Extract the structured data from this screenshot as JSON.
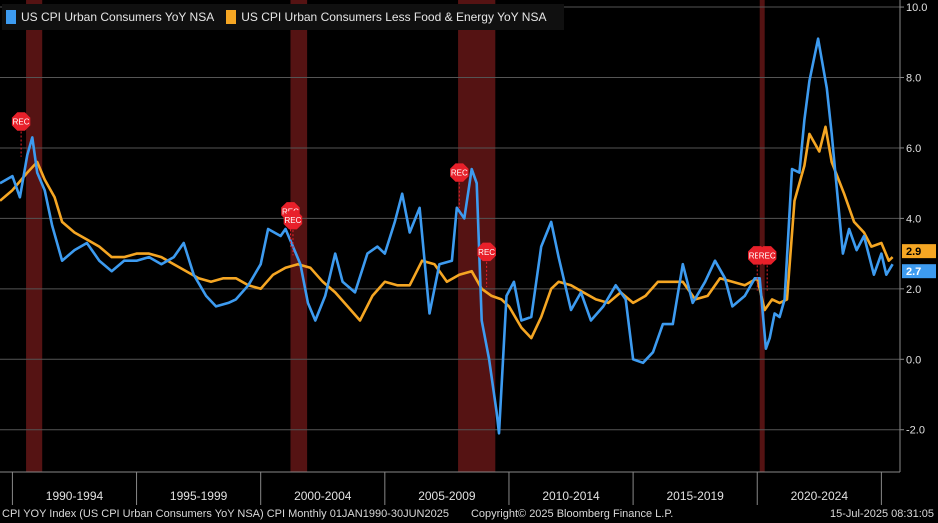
{
  "legend": {
    "series1": "US CPI Urban Consumers YoY NSA",
    "series2": "US CPI Urban Consumers Less Food & Energy YoY NSA"
  },
  "colors": {
    "series1": "#3d9bf0",
    "series2": "#f5a623",
    "recession": "#5a1414",
    "rec_marker": "#e8202a",
    "grid": "#555555"
  },
  "footer": {
    "source": "CPI YOY Index (US CPI Urban Consumers YoY NSA) CPI  Monthly 01JAN1990-30JUN2025",
    "copyright": "Copyright© 2025 Bloomberg Finance L.P.",
    "timestamp": "15-Jul-2025 08:31:05"
  },
  "chart_data": {
    "type": "line",
    "title": "",
    "xlabel": "",
    "ylabel": "",
    "xlim": [
      1989.5,
      2025.75
    ],
    "ylim": [
      -3.2,
      10.2
    ],
    "y_ticks": [
      -2.0,
      0.0,
      2.0,
      4.0,
      6.0,
      8.0,
      10.0
    ],
    "y_tick_labels": [
      "-2.0",
      "0.0",
      "2.0",
      "4.0",
      "6.0",
      "8.0",
      "10.0"
    ],
    "x_tick_labels": [
      "1990-1994",
      "1995-1999",
      "2000-2004",
      "2005-2009",
      "2010-2014",
      "2015-2019",
      "2020-2024"
    ],
    "x_tick_ranges": [
      [
        1990,
        1995
      ],
      [
        1995,
        2000
      ],
      [
        2000,
        2005
      ],
      [
        2005,
        2010
      ],
      [
        2010,
        2015
      ],
      [
        2015,
        2020
      ],
      [
        2020,
        2025
      ]
    ],
    "recessions": [
      [
        1990.55,
        1991.2
      ],
      [
        2001.2,
        2001.87
      ],
      [
        2007.95,
        2009.45
      ],
      [
        2020.1,
        2020.3
      ]
    ],
    "rec_label": "REC",
    "rec_markers": [
      {
        "x": 1990.35,
        "y": 6.75
      },
      {
        "x": 2001.2,
        "y": 4.2
      },
      {
        "x": 2001.3,
        "y": 3.95
      },
      {
        "x": 2008.0,
        "y": 5.3
      },
      {
        "x": 2009.1,
        "y": 3.05
      },
      {
        "x": 2020.0,
        "y": 2.95
      },
      {
        "x": 2020.4,
        "y": 2.95
      }
    ],
    "series": [
      {
        "name": "US CPI Urban Consumers YoY NSA",
        "last_label": "2.7",
        "points": [
          [
            1989.5,
            5.0
          ],
          [
            1990.0,
            5.2
          ],
          [
            1990.3,
            4.6
          ],
          [
            1990.6,
            5.8
          ],
          [
            1990.8,
            6.3
          ],
          [
            1991.0,
            5.3
          ],
          [
            1991.3,
            4.8
          ],
          [
            1991.6,
            3.8
          ],
          [
            1992.0,
            2.8
          ],
          [
            1992.5,
            3.1
          ],
          [
            1993.0,
            3.3
          ],
          [
            1993.5,
            2.8
          ],
          [
            1994.0,
            2.5
          ],
          [
            1994.5,
            2.8
          ],
          [
            1995.0,
            2.8
          ],
          [
            1995.5,
            2.9
          ],
          [
            1996.0,
            2.7
          ],
          [
            1996.5,
            2.9
          ],
          [
            1996.9,
            3.3
          ],
          [
            1997.3,
            2.4
          ],
          [
            1997.8,
            1.8
          ],
          [
            1998.2,
            1.5
          ],
          [
            1998.7,
            1.6
          ],
          [
            1999.0,
            1.7
          ],
          [
            1999.5,
            2.1
          ],
          [
            2000.0,
            2.7
          ],
          [
            2000.3,
            3.7
          ],
          [
            2000.8,
            3.5
          ],
          [
            2001.0,
            3.7
          ],
          [
            2001.3,
            3.2
          ],
          [
            2001.6,
            2.7
          ],
          [
            2001.9,
            1.6
          ],
          [
            2002.2,
            1.1
          ],
          [
            2002.6,
            1.8
          ],
          [
            2003.0,
            3.0
          ],
          [
            2003.3,
            2.2
          ],
          [
            2003.8,
            1.9
          ],
          [
            2004.3,
            3.0
          ],
          [
            2004.7,
            3.2
          ],
          [
            2005.0,
            3.0
          ],
          [
            2005.4,
            3.9
          ],
          [
            2005.7,
            4.7
          ],
          [
            2006.0,
            3.6
          ],
          [
            2006.4,
            4.3
          ],
          [
            2006.8,
            1.3
          ],
          [
            2007.2,
            2.7
          ],
          [
            2007.7,
            2.8
          ],
          [
            2007.9,
            4.3
          ],
          [
            2008.2,
            4.0
          ],
          [
            2008.5,
            5.4
          ],
          [
            2008.7,
            5.0
          ],
          [
            2008.9,
            1.1
          ],
          [
            2009.2,
            0.0
          ],
          [
            2009.5,
            -1.5
          ],
          [
            2009.6,
            -2.1
          ],
          [
            2009.9,
            1.8
          ],
          [
            2010.2,
            2.2
          ],
          [
            2010.5,
            1.1
          ],
          [
            2010.9,
            1.2
          ],
          [
            2011.3,
            3.2
          ],
          [
            2011.7,
            3.9
          ],
          [
            2012.0,
            2.9
          ],
          [
            2012.5,
            1.4
          ],
          [
            2012.9,
            1.9
          ],
          [
            2013.3,
            1.1
          ],
          [
            2013.8,
            1.5
          ],
          [
            2014.3,
            2.1
          ],
          [
            2014.7,
            1.7
          ],
          [
            2015.0,
            0.0
          ],
          [
            2015.4,
            -0.1
          ],
          [
            2015.8,
            0.2
          ],
          [
            2016.2,
            1.0
          ],
          [
            2016.6,
            1.0
          ],
          [
            2017.0,
            2.7
          ],
          [
            2017.4,
            1.6
          ],
          [
            2017.9,
            2.2
          ],
          [
            2018.3,
            2.8
          ],
          [
            2018.7,
            2.3
          ],
          [
            2019.0,
            1.5
          ],
          [
            2019.5,
            1.8
          ],
          [
            2019.9,
            2.3
          ],
          [
            2020.1,
            2.3
          ],
          [
            2020.35,
            0.3
          ],
          [
            2020.5,
            0.6
          ],
          [
            2020.7,
            1.3
          ],
          [
            2020.9,
            1.2
          ],
          [
            2021.1,
            1.7
          ],
          [
            2021.4,
            5.4
          ],
          [
            2021.7,
            5.3
          ],
          [
            2021.9,
            6.8
          ],
          [
            2022.1,
            7.9
          ],
          [
            2022.45,
            9.1
          ],
          [
            2022.8,
            7.7
          ],
          [
            2023.0,
            6.4
          ],
          [
            2023.45,
            3.0
          ],
          [
            2023.7,
            3.7
          ],
          [
            2024.0,
            3.1
          ],
          [
            2024.3,
            3.5
          ],
          [
            2024.7,
            2.4
          ],
          [
            2025.0,
            3.0
          ],
          [
            2025.2,
            2.4
          ],
          [
            2025.45,
            2.7
          ]
        ]
      },
      {
        "name": "US CPI Urban Consumers Less Food & Energy YoY NSA",
        "last_label": "2.9",
        "points": [
          [
            1989.5,
            4.5
          ],
          [
            1990.0,
            4.8
          ],
          [
            1990.6,
            5.3
          ],
          [
            1991.0,
            5.6
          ],
          [
            1991.3,
            5.1
          ],
          [
            1991.7,
            4.6
          ],
          [
            1992.0,
            3.9
          ],
          [
            1992.5,
            3.6
          ],
          [
            1993.0,
            3.4
          ],
          [
            1993.5,
            3.2
          ],
          [
            1994.0,
            2.9
          ],
          [
            1994.5,
            2.9
          ],
          [
            1995.0,
            3.0
          ],
          [
            1995.5,
            3.0
          ],
          [
            1996.0,
            2.9
          ],
          [
            1996.5,
            2.7
          ],
          [
            1997.0,
            2.5
          ],
          [
            1997.5,
            2.3
          ],
          [
            1998.0,
            2.2
          ],
          [
            1998.5,
            2.3
          ],
          [
            1999.0,
            2.3
          ],
          [
            1999.5,
            2.1
          ],
          [
            2000.0,
            2.0
          ],
          [
            2000.5,
            2.4
          ],
          [
            2001.0,
            2.6
          ],
          [
            2001.5,
            2.7
          ],
          [
            2002.0,
            2.6
          ],
          [
            2002.5,
            2.2
          ],
          [
            2003.0,
            1.9
          ],
          [
            2003.5,
            1.5
          ],
          [
            2004.0,
            1.1
          ],
          [
            2004.5,
            1.8
          ],
          [
            2005.0,
            2.2
          ],
          [
            2005.5,
            2.1
          ],
          [
            2006.0,
            2.1
          ],
          [
            2006.5,
            2.8
          ],
          [
            2007.0,
            2.7
          ],
          [
            2007.5,
            2.2
          ],
          [
            2008.0,
            2.4
          ],
          [
            2008.5,
            2.5
          ],
          [
            2008.9,
            2.0
          ],
          [
            2009.3,
            1.8
          ],
          [
            2009.7,
            1.7
          ],
          [
            2010.0,
            1.5
          ],
          [
            2010.5,
            0.9
          ],
          [
            2010.9,
            0.6
          ],
          [
            2011.3,
            1.2
          ],
          [
            2011.7,
            2.0
          ],
          [
            2012.0,
            2.2
          ],
          [
            2012.5,
            2.1
          ],
          [
            2013.0,
            1.9
          ],
          [
            2013.5,
            1.7
          ],
          [
            2014.0,
            1.6
          ],
          [
            2014.5,
            1.9
          ],
          [
            2015.0,
            1.6
          ],
          [
            2015.5,
            1.8
          ],
          [
            2016.0,
            2.2
          ],
          [
            2016.5,
            2.2
          ],
          [
            2017.0,
            2.2
          ],
          [
            2017.5,
            1.7
          ],
          [
            2018.0,
            1.8
          ],
          [
            2018.5,
            2.3
          ],
          [
            2019.0,
            2.2
          ],
          [
            2019.5,
            2.1
          ],
          [
            2020.0,
            2.3
          ],
          [
            2020.3,
            1.4
          ],
          [
            2020.6,
            1.7
          ],
          [
            2020.9,
            1.6
          ],
          [
            2021.2,
            1.7
          ],
          [
            2021.5,
            4.5
          ],
          [
            2021.9,
            5.5
          ],
          [
            2022.1,
            6.4
          ],
          [
            2022.5,
            5.9
          ],
          [
            2022.75,
            6.6
          ],
          [
            2023.0,
            5.6
          ],
          [
            2023.5,
            4.7
          ],
          [
            2023.9,
            3.9
          ],
          [
            2024.3,
            3.6
          ],
          [
            2024.6,
            3.2
          ],
          [
            2025.0,
            3.3
          ],
          [
            2025.3,
            2.8
          ],
          [
            2025.45,
            2.9
          ]
        ]
      }
    ]
  }
}
